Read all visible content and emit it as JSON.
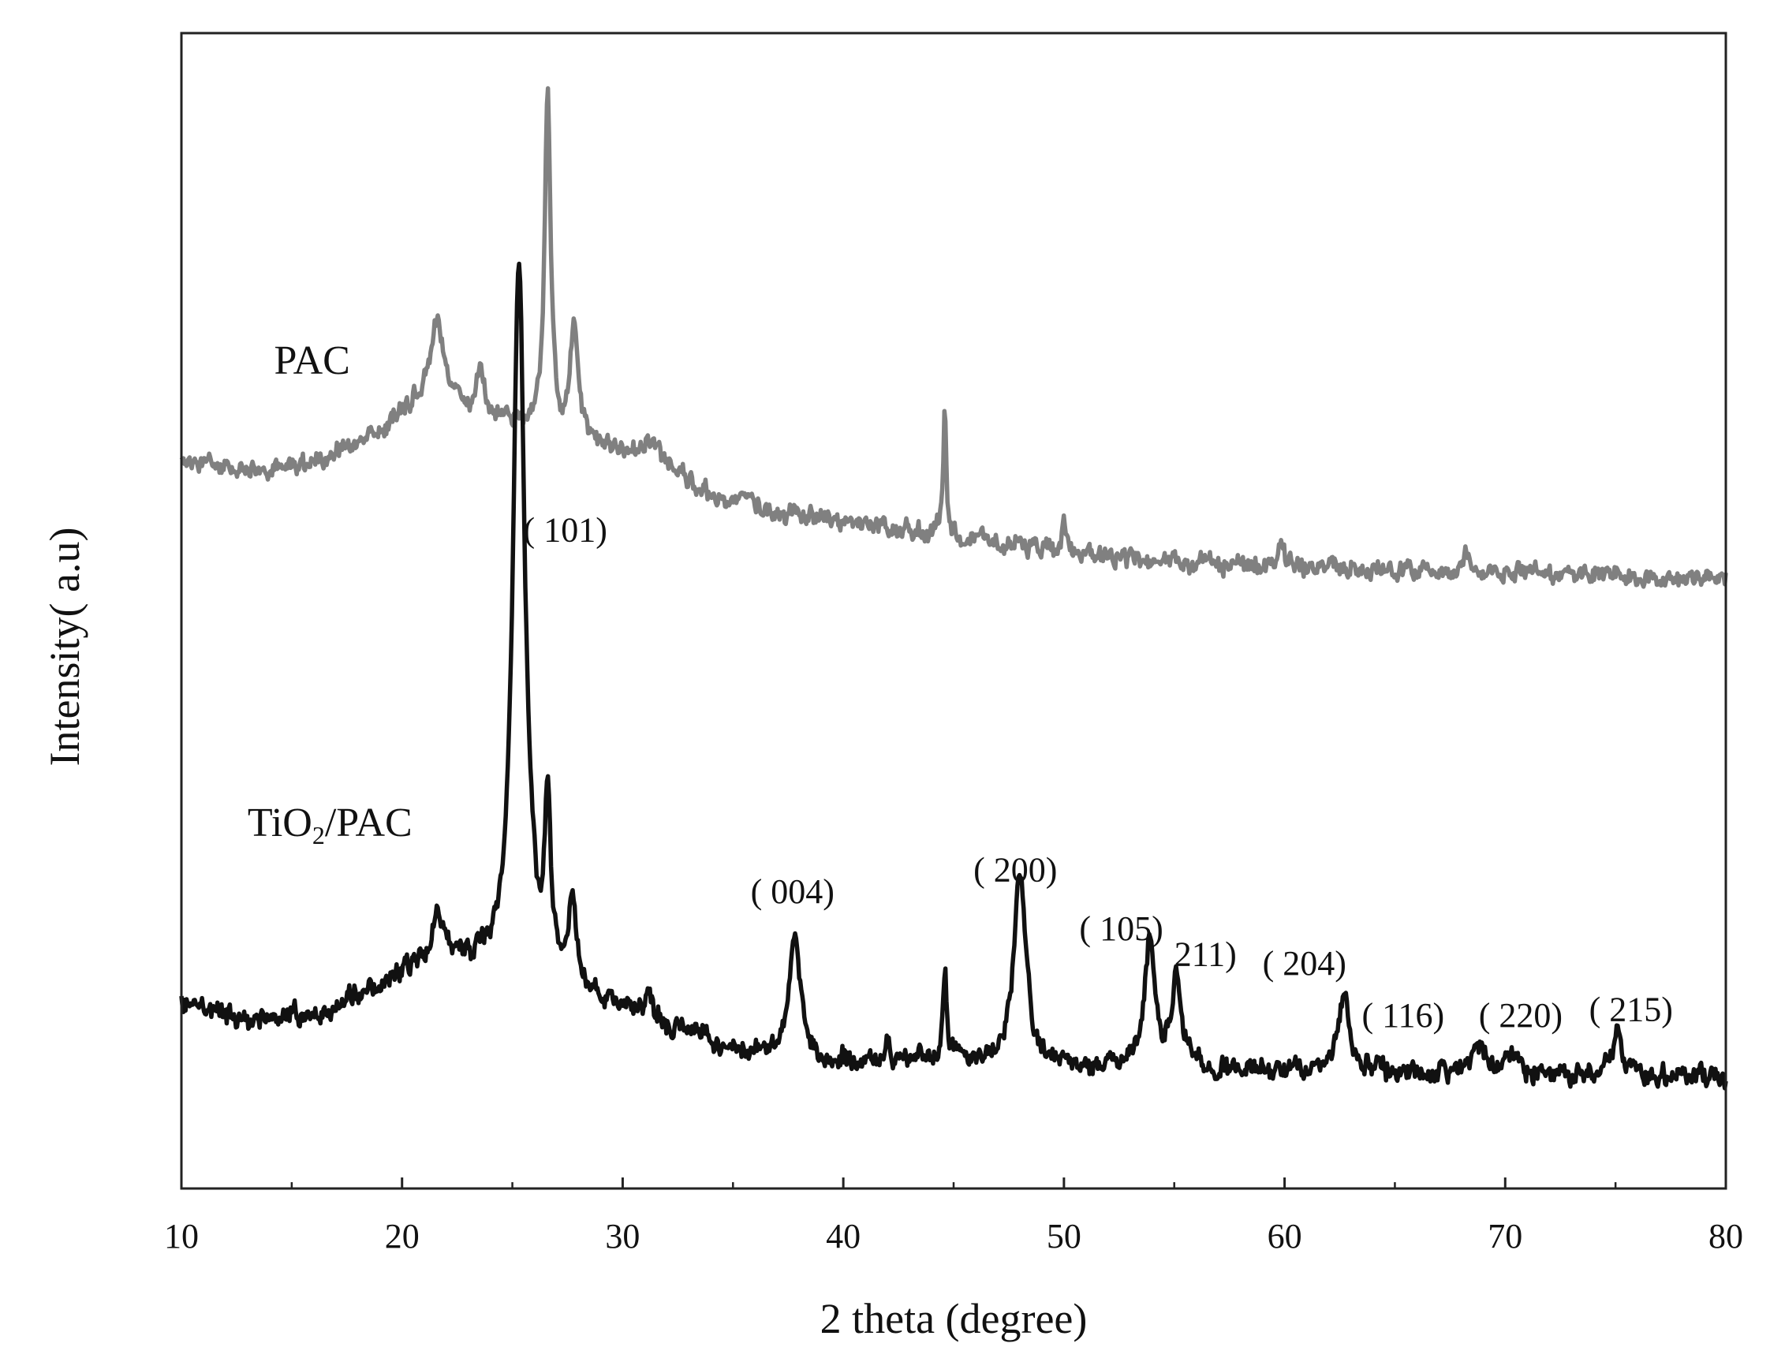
{
  "chart_data": {
    "type": "line",
    "title": "",
    "xlabel": "2 theta (degree)",
    "ylabel": "Intensity( a.u)",
    "xlim": [
      10,
      80
    ],
    "ylim": [
      0,
      100
    ],
    "x_ticks": [
      "10",
      "20",
      "30",
      "40",
      "50",
      "60",
      "70",
      "80"
    ],
    "x_ticks_values": [
      10,
      20,
      30,
      40,
      50,
      60,
      70,
      80
    ],
    "y_ticks_shown": false,
    "grid": false,
    "legend": "none",
    "series": [
      {
        "name": "PAC",
        "label_main": "PAC",
        "label_sub": "",
        "label_tail": "",
        "label_at": [
          14.2,
          70.5
        ],
        "color": "#808080",
        "noise": 1.0,
        "baseline": [
          [
            10,
            63.0
          ],
          [
            13,
            62.0
          ],
          [
            16,
            62.8
          ],
          [
            19,
            65.5
          ],
          [
            21,
            68.5
          ],
          [
            22.5,
            67.5
          ],
          [
            24.5,
            66.5
          ],
          [
            26,
            66.0
          ],
          [
            28,
            64.5
          ],
          [
            31,
            63.3
          ],
          [
            35,
            59.0
          ],
          [
            40,
            57.5
          ],
          [
            45,
            56.5
          ],
          [
            50,
            55.0
          ],
          [
            55,
            54.3
          ],
          [
            60,
            53.8
          ],
          [
            65,
            53.6
          ],
          [
            70,
            53.3
          ],
          [
            75,
            53.1
          ],
          [
            80,
            53.0
          ]
        ],
        "peaks": [
          {
            "x": 21.6,
            "h": 7.0,
            "w": 0.35
          },
          {
            "x": 23.5,
            "h": 4.0,
            "w": 0.2
          },
          {
            "x": 26.6,
            "h": 29.0,
            "w": 0.16
          },
          {
            "x": 27.8,
            "h": 9.5,
            "w": 0.22
          },
          {
            "x": 31.3,
            "h": 2.0,
            "w": 0.4
          },
          {
            "x": 35.6,
            "h": 1.5,
            "w": 0.3
          },
          {
            "x": 44.6,
            "h": 11.5,
            "w": 0.08
          },
          {
            "x": 50.0,
            "h": 3.0,
            "w": 0.12
          },
          {
            "x": 59.8,
            "h": 2.2,
            "w": 0.15
          },
          {
            "x": 68.2,
            "h": 2.0,
            "w": 0.2
          }
        ]
      },
      {
        "name": "TiO2/PAC",
        "label_main": "TiO",
        "label_sub": "2",
        "label_tail": "/PAC",
        "label_at": [
          13.0,
          30.5
        ],
        "color": "#111111",
        "noise": 1.1,
        "baseline": [
          [
            10,
            16.0
          ],
          [
            13,
            14.5
          ],
          [
            17,
            15.5
          ],
          [
            20,
            18.5
          ],
          [
            22,
            19.5
          ],
          [
            24,
            19.0
          ],
          [
            27,
            17.5
          ],
          [
            30,
            15.5
          ],
          [
            35,
            12.0
          ],
          [
            40,
            11.0
          ],
          [
            45,
            11.0
          ],
          [
            50,
            10.5
          ],
          [
            55,
            10.5
          ],
          [
            60,
            10.0
          ],
          [
            65,
            10.0
          ],
          [
            70,
            9.8
          ],
          [
            75,
            9.8
          ],
          [
            80,
            9.6
          ]
        ],
        "peaks": [
          {
            "x": 21.6,
            "h": 4.0,
            "w": 0.3
          },
          {
            "x": 25.3,
            "h": 62.0,
            "w": 0.32
          },
          {
            "x": 26.6,
            "h": 15.0,
            "w": 0.15
          },
          {
            "x": 27.7,
            "h": 7.0,
            "w": 0.2
          },
          {
            "x": 31.2,
            "h": 2.5,
            "w": 0.2
          },
          {
            "x": 37.8,
            "h": 11.0,
            "w": 0.28
          },
          {
            "x": 42.0,
            "h": 2.5,
            "w": 0.1
          },
          {
            "x": 44.6,
            "h": 8.0,
            "w": 0.1
          },
          {
            "x": 48.0,
            "h": 17.0,
            "w": 0.33
          },
          {
            "x": 53.9,
            "h": 11.5,
            "w": 0.28
          },
          {
            "x": 55.1,
            "h": 7.5,
            "w": 0.25
          },
          {
            "x": 62.7,
            "h": 7.0,
            "w": 0.32
          },
          {
            "x": 68.9,
            "h": 2.5,
            "w": 0.4
          },
          {
            "x": 70.3,
            "h": 2.5,
            "w": 0.25
          },
          {
            "x": 75.1,
            "h": 3.3,
            "w": 0.3
          }
        ]
      }
    ],
    "annotations": [
      {
        "text": "( 101)",
        "x": 25.5,
        "y": 56.0,
        "anchor": "start"
      },
      {
        "text": "( 004)",
        "x": 37.7,
        "y": 24.7,
        "anchor": "middle"
      },
      {
        "text": "( 200)",
        "x": 47.8,
        "y": 26.6,
        "anchor": "middle"
      },
      {
        "text": "( 105)",
        "x": 52.6,
        "y": 21.5,
        "anchor": "middle"
      },
      {
        "text": "211)",
        "x": 55.0,
        "y": 19.3,
        "anchor": "start"
      },
      {
        "text": "( 204)",
        "x": 59.0,
        "y": 18.5,
        "anchor": "start"
      },
      {
        "text": "( 116)",
        "x": 63.5,
        "y": 14.0,
        "anchor": "start"
      },
      {
        "text": "( 220)",
        "x": 68.8,
        "y": 14.0,
        "anchor": "start"
      },
      {
        "text": "( 215)",
        "x": 73.8,
        "y": 14.5,
        "anchor": "start"
      }
    ]
  }
}
